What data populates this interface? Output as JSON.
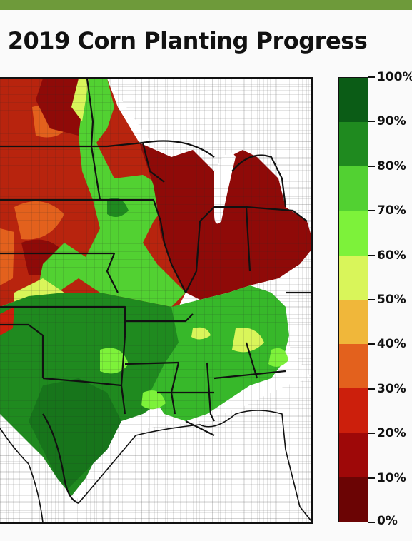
{
  "title": "2019 Corn Planting Progress",
  "legend": {
    "labels": [
      "100%",
      "90%",
      "80%",
      "70%",
      "60%",
      "50%",
      "40%",
      "30%",
      "20%",
      "10%",
      "0%"
    ],
    "colors": [
      "#0b5c16",
      "#1f8a1f",
      "#52d132",
      "#7df23a",
      "#d9f55a",
      "#f0b73a",
      "#e3611d",
      "#cc1f0c",
      "#9e0808",
      "#6b0404"
    ]
  },
  "map": {
    "regions": [
      {
        "name": "northern-plains",
        "color": "#b8240e"
      },
      {
        "name": "iowa-minnesota-band",
        "color": "#52d132"
      },
      {
        "name": "southern-plains",
        "color": "#1f8a1f"
      },
      {
        "name": "eastern-corn-belt",
        "color": "#8f0a08"
      },
      {
        "name": "southeast",
        "color": "#37b82a"
      },
      {
        "name": "central-texas",
        "color": "#17751b"
      }
    ]
  }
}
